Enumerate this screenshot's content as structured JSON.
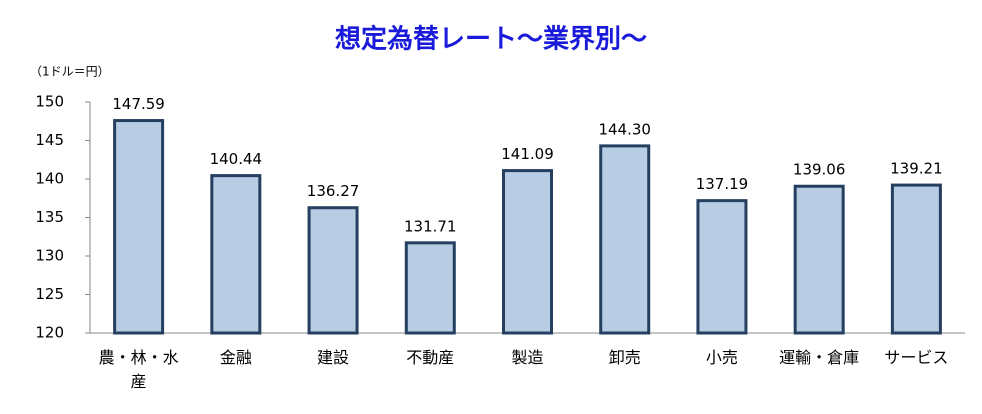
{
  "chart_data": {
    "type": "bar",
    "title": "想定為替レート～業界別～",
    "y_axis_label": "（1ドル＝円）",
    "categories": [
      "農・林・水産",
      "金融",
      "建設",
      "不動産",
      "製造",
      "卸売",
      "小売",
      "運輸・倉庫",
      "サービス"
    ],
    "values": [
      147.59,
      140.44,
      136.27,
      131.71,
      141.09,
      144.3,
      137.19,
      139.06,
      139.21
    ],
    "value_labels": [
      "147.59",
      "140.44",
      "136.27",
      "131.71",
      "141.09",
      "144.30",
      "137.19",
      "139.06",
      "139.21"
    ],
    "color": "#b8cce4",
    "edge_color": "#243f60",
    "ylim": [
      120,
      150
    ],
    "yticks": [
      120,
      125,
      130,
      135,
      140,
      145,
      150
    ],
    "grid": false
  }
}
